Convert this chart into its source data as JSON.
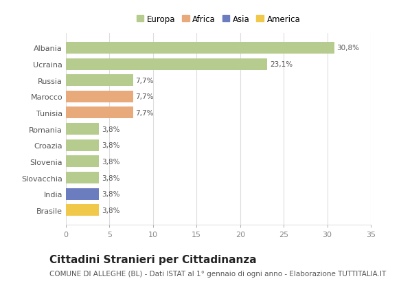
{
  "categories": [
    "Albania",
    "Ucraina",
    "Russia",
    "Marocco",
    "Tunisia",
    "Romania",
    "Croazia",
    "Slovenia",
    "Slovacchia",
    "India",
    "Brasile"
  ],
  "values": [
    30.8,
    23.1,
    7.7,
    7.7,
    7.7,
    3.8,
    3.8,
    3.8,
    3.8,
    3.8,
    3.8
  ],
  "labels": [
    "30,8%",
    "23,1%",
    "7,7%",
    "7,7%",
    "7,7%",
    "3,8%",
    "3,8%",
    "3,8%",
    "3,8%",
    "3,8%",
    "3,8%"
  ],
  "colors": [
    "#b5cc8e",
    "#b5cc8e",
    "#b5cc8e",
    "#e8aa7a",
    "#e8aa7a",
    "#b5cc8e",
    "#b5cc8e",
    "#b5cc8e",
    "#b5cc8e",
    "#6b7cbf",
    "#f0c84a"
  ],
  "continent_colors": {
    "Europa": "#b5cc8e",
    "Africa": "#e8aa7a",
    "Asia": "#6b7cbf",
    "America": "#f0c84a"
  },
  "legend_labels": [
    "Europa",
    "Africa",
    "Asia",
    "America"
  ],
  "xlim": [
    0,
    35
  ],
  "xticks": [
    0,
    5,
    10,
    15,
    20,
    25,
    30,
    35
  ],
  "title": "Cittadini Stranieri per Cittadinanza",
  "subtitle": "COMUNE DI ALLEGHE (BL) - Dati ISTAT al 1° gennaio di ogni anno - Elaborazione TUTTITALIA.IT",
  "background_color": "#ffffff",
  "plot_bg_color": "#ffffff",
  "bar_height": 0.72,
  "title_fontsize": 11,
  "subtitle_fontsize": 7.5,
  "label_fontsize": 7.5,
  "ytick_fontsize": 8,
  "xtick_fontsize": 8
}
